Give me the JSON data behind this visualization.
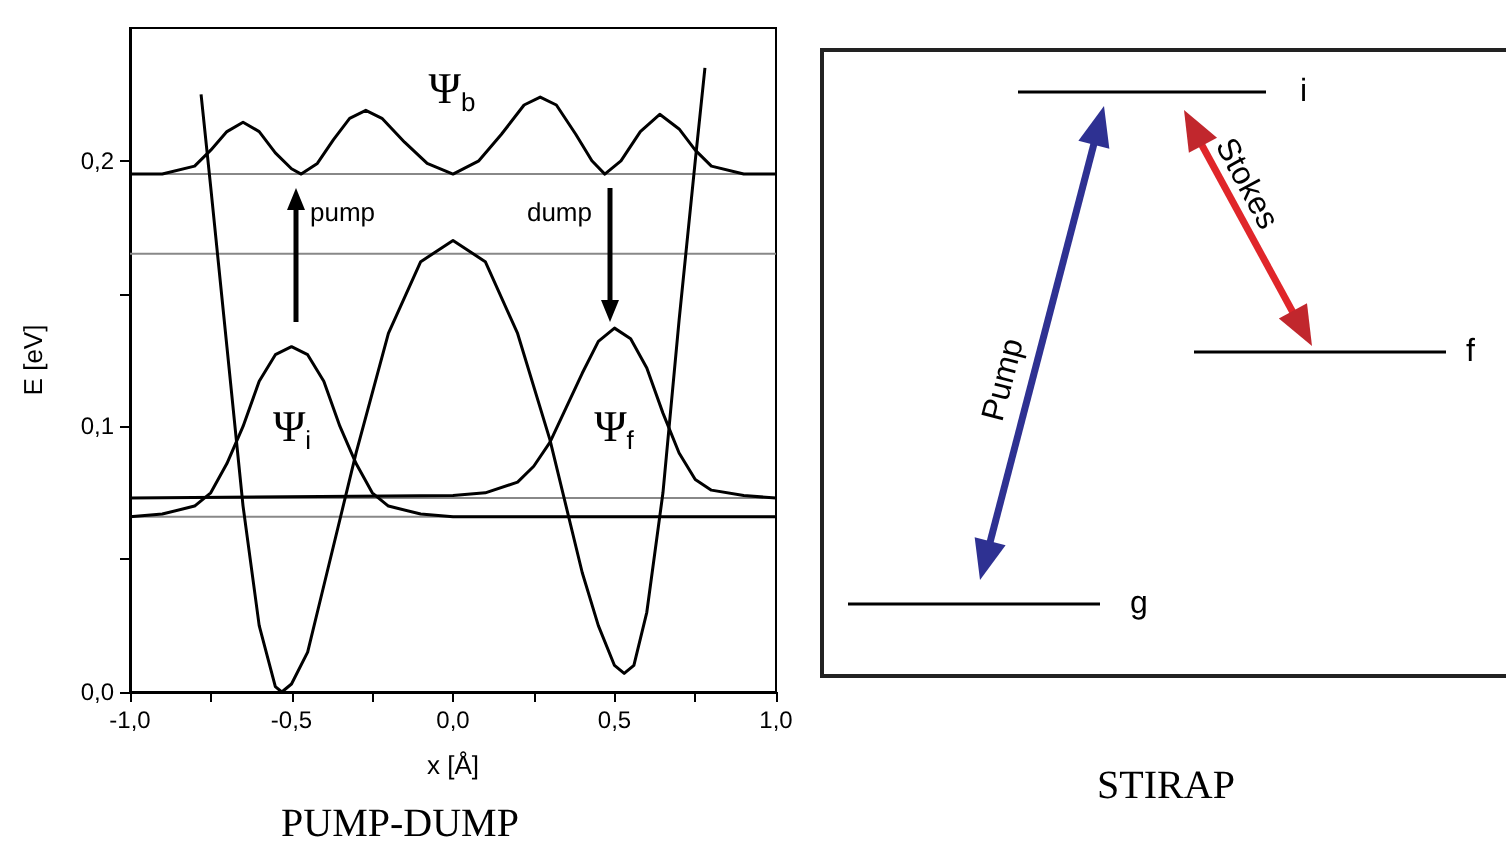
{
  "chart_data": [
    {
      "type": "line",
      "title": "PUMP-DUMP",
      "xlabel": "x [Å]",
      "ylabel": "E [eV]",
      "xlim": [
        -1,
        1
      ],
      "ylim": [
        0,
        0.25
      ],
      "xticks": [
        {
          "value": -1,
          "label": "-1,0"
        },
        {
          "value": -0.75,
          "label": null
        },
        {
          "value": -0.5,
          "label": "-0,5"
        },
        {
          "value": -0.25,
          "label": null
        },
        {
          "value": 0,
          "label": "0,0"
        },
        {
          "value": 0.25,
          "label": null
        },
        {
          "value": 0.5,
          "label": "0,5"
        },
        {
          "value": 0.75,
          "label": null
        },
        {
          "value": 1,
          "label": "1,0"
        }
      ],
      "yticks": [
        {
          "value": 0,
          "label": "0,0"
        },
        {
          "value": 0.05,
          "label": null
        },
        {
          "value": 0.1,
          "label": "0,1"
        },
        {
          "value": 0.15,
          "label": null
        },
        {
          "value": 0.2,
          "label": "0,2"
        }
      ],
      "marker": "none",
      "line_style": "solid",
      "series": [
        {
          "color": "#000000",
          "x": [
            -0.78,
            -0.75,
            -0.7,
            -0.65,
            -0.6,
            -0.55,
            -0.53,
            -0.5,
            -0.45,
            -0.4,
            -0.3,
            -0.2,
            -0.1,
            0,
            0.1,
            0.2,
            0.3,
            0.4,
            0.45,
            0.5,
            0.53,
            0.56,
            0.6,
            0.65,
            0.7,
            0.75,
            0.78
          ],
          "values": [
            0.225,
            0.19,
            0.13,
            0.07,
            0.025,
            0.002,
            0,
            0.003,
            0.015,
            0.04,
            0.09,
            0.135,
            0.162,
            0.17,
            0.162,
            0.135,
            0.095,
            0.045,
            0.025,
            0.01,
            0.007,
            0.01,
            0.03,
            0.075,
            0.14,
            0.2,
            0.235
          ]
        },
        {
          "color": "#000000",
          "x": [
            -1,
            -0.9,
            -0.8,
            -0.75,
            -0.7,
            -0.65,
            -0.6,
            -0.55,
            -0.5,
            -0.45,
            -0.4,
            -0.35,
            -0.3,
            -0.25,
            -0.2,
            -0.1,
            0,
            0.5,
            1
          ],
          "values": [
            0.066,
            0.067,
            0.07,
            0.075,
            0.086,
            0.1,
            0.117,
            0.127,
            0.13,
            0.127,
            0.117,
            0.1,
            0.086,
            0.075,
            0.07,
            0.067,
            0.066,
            0.066,
            0.066
          ]
        },
        {
          "color": "#000000",
          "x": [
            -1,
            0,
            0.1,
            0.2,
            0.25,
            0.3,
            0.35,
            0.4,
            0.45,
            0.5,
            0.55,
            0.6,
            0.65,
            0.7,
            0.75,
            0.8,
            0.9,
            1
          ],
          "values": [
            0.073,
            0.074,
            0.075,
            0.079,
            0.085,
            0.094,
            0.107,
            0.12,
            0.132,
            0.137,
            0.133,
            0.122,
            0.105,
            0.09,
            0.08,
            0.076,
            0.074,
            0.073
          ]
        },
        {
          "color": "#000000",
          "x": [
            -1,
            -0.9,
            -0.8,
            -0.75,
            -0.7,
            -0.65,
            -0.6,
            -0.55,
            -0.5,
            -0.47,
            -0.42,
            -0.37,
            -0.32,
            -0.27,
            -0.22,
            -0.15,
            -0.08,
            0,
            0.08,
            0.15,
            0.22,
            0.27,
            0.32,
            0.38,
            0.43,
            0.47,
            0.52,
            0.58,
            0.64,
            0.7,
            0.75,
            0.8,
            0.9,
            1
          ],
          "values": [
            0.195,
            0.195,
            0.198,
            0.204,
            0.211,
            0.2145,
            0.211,
            0.203,
            0.197,
            0.195,
            0.199,
            0.208,
            0.216,
            0.219,
            0.216,
            0.207,
            0.199,
            0.195,
            0.2,
            0.21,
            0.221,
            0.224,
            0.221,
            0.21,
            0.2,
            0.195,
            0.2,
            0.211,
            0.2175,
            0.212,
            0.204,
            0.198,
            0.195,
            0.195
          ]
        }
      ],
      "ref_lines": [
        {
          "axis": "y",
          "value": 0.195,
          "color": "#888888"
        },
        {
          "axis": "y",
          "value": 0.165,
          "color": "#888888"
        },
        {
          "axis": "y",
          "value": 0.073,
          "color": "#888888"
        },
        {
          "axis": "y",
          "value": 0.066,
          "color": "#888888"
        }
      ],
      "annotations": [
        "Ψ$_{b}$",
        "Ψ$_{i}$",
        "Ψ$_{f}$",
        "pump",
        "dump"
      ]
    },
    {
      "type": "other",
      "title": "STIRAP",
      "annotations": [
        "i",
        "f",
        "g",
        "Pump",
        "Stokes"
      ]
    }
  ]
}
